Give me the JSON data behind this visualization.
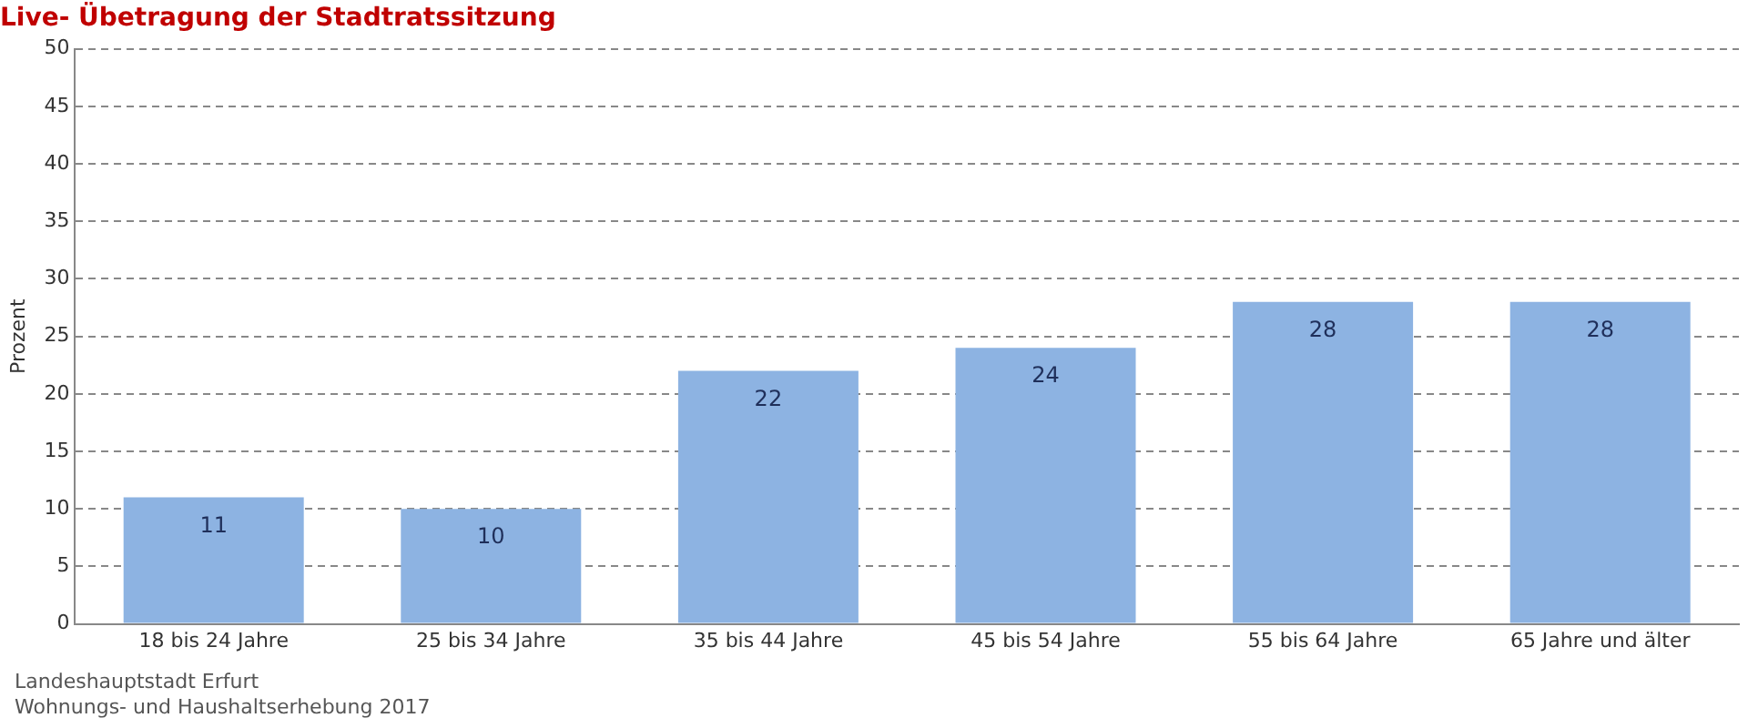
{
  "chart_data": {
    "type": "bar",
    "title": "Live- Übetragung der Stadtratssitzung",
    "ylabel": "Prozent",
    "categories": [
      "18 bis 24 Jahre",
      "25 bis 34 Jahre",
      "35 bis 44 Jahre",
      "45 bis 54 Jahre",
      "55 bis 64 Jahre",
      "65 Jahre und älter"
    ],
    "values": [
      11,
      10,
      22,
      24,
      28,
      28
    ],
    "color": "#8db3e2",
    "ylim": [
      0,
      50
    ],
    "yticks": [
      0,
      5,
      10,
      15,
      20,
      25,
      30,
      35,
      40,
      45,
      50
    ],
    "grid": "y",
    "legend": false,
    "data_labels": true,
    "annotations": [
      "Landeshauptstadt Erfurt",
      "Wohnungs- und Haushaltserhebung 2017"
    ]
  }
}
